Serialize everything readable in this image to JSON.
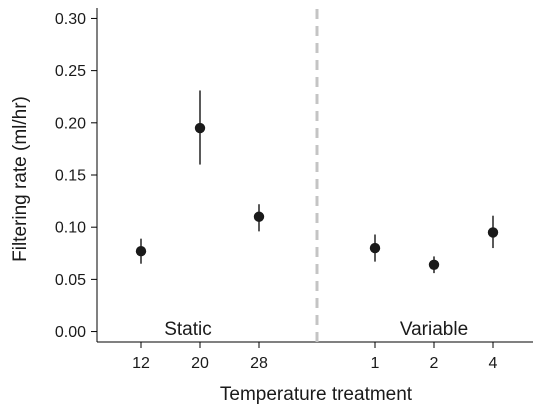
{
  "chart_data": {
    "type": "scatter",
    "xlabel": "Temperature treatment",
    "ylabel": "Filtering rate (ml/hr)",
    "ylim": [
      -0.01,
      0.31
    ],
    "yticks": [
      "0.00",
      "0.05",
      "0.10",
      "0.15",
      "0.20",
      "0.25",
      "0.30"
    ],
    "ytick_values": [
      0,
      0.05,
      0.1,
      0.15,
      0.2,
      0.25,
      0.3
    ],
    "grid": false,
    "divider_style": "dashed",
    "colors": {
      "points": "#1a1a1a",
      "divider": "#c4c4c4",
      "axis": "#000000"
    },
    "groups": [
      {
        "label": "Static",
        "points": [
          {
            "x": "12",
            "y": 0.077,
            "lower": 0.065,
            "upper": 0.089
          },
          {
            "x": "20",
            "y": 0.195,
            "lower": 0.16,
            "upper": 0.231
          },
          {
            "x": "28",
            "y": 0.11,
            "lower": 0.096,
            "upper": 0.122
          }
        ]
      },
      {
        "label": "Variable",
        "points": [
          {
            "x": "1",
            "y": 0.08,
            "lower": 0.067,
            "upper": 0.093
          },
          {
            "x": "2",
            "y": 0.064,
            "lower": 0.056,
            "upper": 0.072
          },
          {
            "x": "4",
            "y": 0.095,
            "lower": 0.08,
            "upper": 0.111
          }
        ]
      }
    ]
  }
}
